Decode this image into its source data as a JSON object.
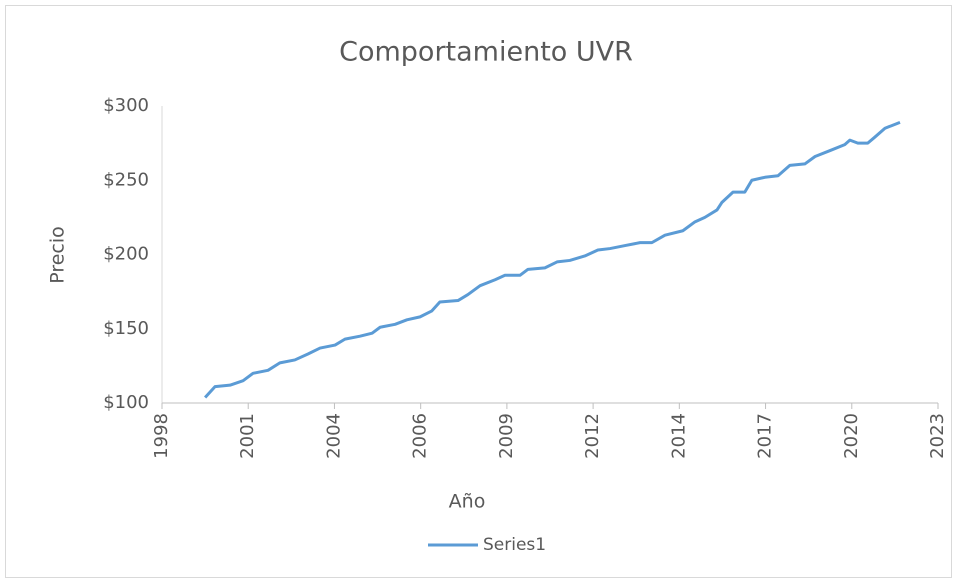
{
  "chart_data": {
    "type": "line",
    "title": "Comportamiento UVR",
    "x_label": "Año",
    "y_label": "Precio",
    "x": [
      2000.1,
      2000.41,
      2000.88,
      2001.29,
      2001.6,
      2002.07,
      2002.44,
      2002.91,
      2003.32,
      2003.7,
      2004.17,
      2004.48,
      2004.95,
      2005.33,
      2005.58,
      2006.05,
      2006.42,
      2006.83,
      2007.2,
      2007.45,
      2008.02,
      2008.33,
      2008.71,
      2009.18,
      2009.49,
      2009.96,
      2010.21,
      2010.74,
      2011.12,
      2011.52,
      2011.99,
      2012.4,
      2012.78,
      2013.25,
      2013.72,
      2014.09,
      2014.5,
      2015.06,
      2015.44,
      2015.75,
      2016.13,
      2016.28,
      2016.63,
      2017.0,
      2017.22,
      2017.63,
      2018.04,
      2018.41,
      2018.88,
      2019.2,
      2019.67,
      2020.13,
      2020.29,
      2020.54,
      2020.85,
      2021.07,
      2021.39,
      2021.86
    ],
    "series": [
      {
        "name": "Series1",
        "color": "#5b9bd5",
        "values": [
          103.7,
          111,
          112,
          115,
          120,
          122,
          127,
          129,
          133,
          137,
          139,
          143,
          145,
          147,
          151,
          153,
          156,
          158,
          162,
          168,
          169,
          173,
          179,
          183,
          186,
          186,
          190,
          191,
          195,
          196,
          199,
          203,
          204,
          206,
          208,
          208,
          213,
          216,
          222,
          225,
          230,
          235,
          242,
          242,
          250,
          252,
          253,
          260,
          261,
          266,
          270,
          274,
          277,
          275,
          275,
          279,
          285,
          289
        ]
      }
    ],
    "xlim": [
      1998.75,
      2023.05
    ],
    "xticks": [
      {
        "value": 1998.75,
        "label": "1998"
      },
      {
        "value": 2001.45,
        "label": "2001"
      },
      {
        "value": 2004.15,
        "label": "2004"
      },
      {
        "value": 2006.85,
        "label": "2006"
      },
      {
        "value": 2009.55,
        "label": "2009"
      },
      {
        "value": 2012.25,
        "label": "2012"
      },
      {
        "value": 2014.95,
        "label": "2014"
      },
      {
        "value": 2017.65,
        "label": "2017"
      },
      {
        "value": 2020.35,
        "label": "2020"
      },
      {
        "value": 2023.05,
        "label": "2023"
      }
    ],
    "ylim": [
      100,
      300
    ],
    "yticks": [
      {
        "value": 100,
        "label": "$100"
      },
      {
        "value": 150,
        "label": "$150"
      },
      {
        "value": 200,
        "label": "$200"
      },
      {
        "value": 250,
        "label": "$250"
      },
      {
        "value": 300,
        "label": "$300"
      }
    ],
    "grid": false,
    "legend": "bottom"
  }
}
